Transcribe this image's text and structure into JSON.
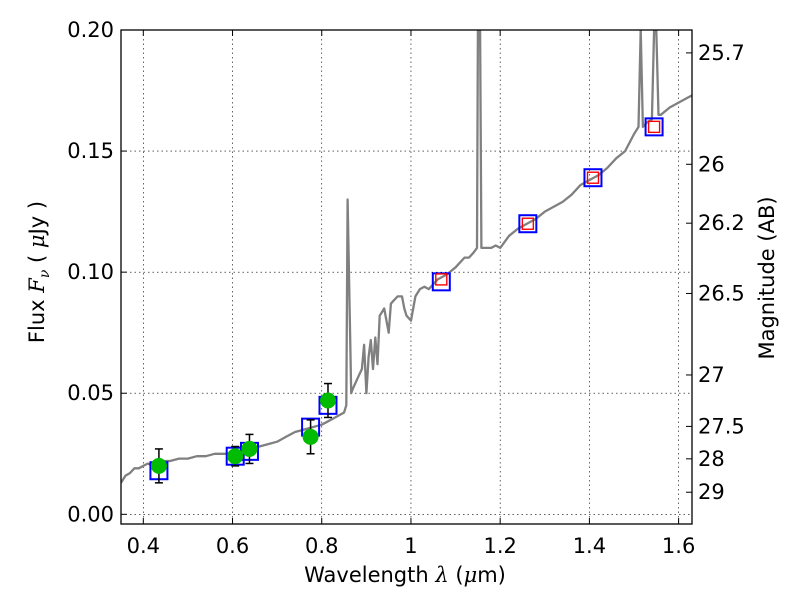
{
  "chart_data": {
    "type": "scatter",
    "xlabel": "Wavelength",
    "xlabel_symbol": "λ",
    "xlabel_unit_open": " (",
    "xlabel_unit_mu": "μ",
    "xlabel_unit_close": "m)",
    "ylabel": "Flux",
    "ylabel_symbol": "F",
    "ylabel_symbol_sub": "ν",
    "ylabel_unit_open": "( ",
    "ylabel_unit_mu": "μ",
    "ylabel_unit_close": "Jy )",
    "y2label": "Magnitude (AB)",
    "xlim": [
      0.35,
      1.63
    ],
    "ylim": [
      -0.004,
      0.2
    ],
    "grid": true,
    "x_ticks": [
      {
        "value": 0.4,
        "label": "0.4"
      },
      {
        "value": 0.6,
        "label": "0.6"
      },
      {
        "value": 0.8,
        "label": "0.8"
      },
      {
        "value": 1.0,
        "label": "1"
      },
      {
        "value": 1.2,
        "label": "1.2"
      },
      {
        "value": 1.4,
        "label": "1.4"
      },
      {
        "value": 1.6,
        "label": "1.6"
      }
    ],
    "y_ticks": [
      {
        "value": 0.0,
        "label": "0.00"
      },
      {
        "value": 0.05,
        "label": "0.05"
      },
      {
        "value": 0.1,
        "label": "0.10"
      },
      {
        "value": 0.15,
        "label": "0.15"
      },
      {
        "value": 0.2,
        "label": "0.20"
      }
    ],
    "mag_ticks": [
      {
        "value": 25.7,
        "label": "25.7"
      },
      {
        "value": 26.0,
        "label": "26"
      },
      {
        "value": 26.2,
        "label": "26.2"
      },
      {
        "value": 26.5,
        "label": "26.5"
      },
      {
        "value": 27.0,
        "label": "27"
      },
      {
        "value": 27.5,
        "label": "27.5"
      },
      {
        "value": 28.0,
        "label": "28"
      },
      {
        "value": 29.0,
        "label": "29"
      }
    ],
    "series": [
      {
        "name": "model spectrum",
        "kind": "line",
        "color": "#808080",
        "points": [
          [
            0.35,
            0.013
          ],
          [
            0.36,
            0.016
          ],
          [
            0.37,
            0.017
          ],
          [
            0.38,
            0.019
          ],
          [
            0.39,
            0.019
          ],
          [
            0.4,
            0.02
          ],
          [
            0.41,
            0.021
          ],
          [
            0.42,
            0.02
          ],
          [
            0.43,
            0.021
          ],
          [
            0.44,
            0.022
          ],
          [
            0.45,
            0.022
          ],
          [
            0.46,
            0.022
          ],
          [
            0.48,
            0.023
          ],
          [
            0.5,
            0.023
          ],
          [
            0.52,
            0.024
          ],
          [
            0.54,
            0.024
          ],
          [
            0.56,
            0.025
          ],
          [
            0.58,
            0.025
          ],
          [
            0.6,
            0.025
          ],
          [
            0.62,
            0.026
          ],
          [
            0.64,
            0.027
          ],
          [
            0.66,
            0.028
          ],
          [
            0.68,
            0.029
          ],
          [
            0.7,
            0.03
          ],
          [
            0.72,
            0.032
          ],
          [
            0.74,
            0.034
          ],
          [
            0.76,
            0.035
          ],
          [
            0.78,
            0.036
          ],
          [
            0.8,
            0.037
          ],
          [
            0.81,
            0.038
          ],
          [
            0.82,
            0.039
          ],
          [
            0.83,
            0.04
          ],
          [
            0.84,
            0.041
          ],
          [
            0.85,
            0.042
          ],
          [
            0.855,
            0.045
          ],
          [
            0.858,
            0.13
          ],
          [
            0.862,
            0.09
          ],
          [
            0.866,
            0.05
          ],
          [
            0.87,
            0.052
          ],
          [
            0.88,
            0.056
          ],
          [
            0.89,
            0.06
          ],
          [
            0.895,
            0.07
          ],
          [
            0.9,
            0.05
          ],
          [
            0.905,
            0.065
          ],
          [
            0.91,
            0.072
          ],
          [
            0.915,
            0.06
          ],
          [
            0.92,
            0.073
          ],
          [
            0.925,
            0.062
          ],
          [
            0.93,
            0.082
          ],
          [
            0.94,
            0.085
          ],
          [
            0.95,
            0.075
          ],
          [
            0.955,
            0.087
          ],
          [
            0.96,
            0.088
          ],
          [
            0.97,
            0.09
          ],
          [
            0.98,
            0.09
          ],
          [
            0.985,
            0.085
          ],
          [
            0.99,
            0.082
          ],
          [
            1.0,
            0.08
          ],
          [
            1.01,
            0.09
          ],
          [
            1.02,
            0.093
          ],
          [
            1.03,
            0.094
          ],
          [
            1.04,
            0.093
          ],
          [
            1.06,
            0.097
          ],
          [
            1.08,
            0.099
          ],
          [
            1.1,
            0.102
          ],
          [
            1.12,
            0.106
          ],
          [
            1.13,
            0.106
          ],
          [
            1.14,
            0.108
          ],
          [
            1.148,
            0.11
          ],
          [
            1.15,
            0.2
          ],
          [
            1.155,
            0.2
          ],
          [
            1.158,
            0.11
          ],
          [
            1.17,
            0.11
          ],
          [
            1.18,
            0.11
          ],
          [
            1.19,
            0.111
          ],
          [
            1.2,
            0.11
          ],
          [
            1.22,
            0.115
          ],
          [
            1.24,
            0.118
          ],
          [
            1.26,
            0.12
          ],
          [
            1.28,
            0.122
          ],
          [
            1.3,
            0.125
          ],
          [
            1.32,
            0.127
          ],
          [
            1.34,
            0.129
          ],
          [
            1.36,
            0.132
          ],
          [
            1.38,
            0.136
          ],
          [
            1.4,
            0.138
          ],
          [
            1.42,
            0.14
          ],
          [
            1.44,
            0.143
          ],
          [
            1.46,
            0.147
          ],
          [
            1.48,
            0.15
          ],
          [
            1.5,
            0.157
          ],
          [
            1.51,
            0.16
          ],
          [
            1.515,
            0.2
          ],
          [
            1.52,
            0.16
          ],
          [
            1.53,
            0.162
          ],
          [
            1.54,
            0.163
          ],
          [
            1.545,
            0.2
          ],
          [
            1.55,
            0.2
          ],
          [
            1.555,
            0.165
          ],
          [
            1.56,
            0.165
          ],
          [
            1.58,
            0.168
          ],
          [
            1.6,
            0.17
          ],
          [
            1.62,
            0.172
          ],
          [
            1.63,
            0.173
          ]
        ]
      },
      {
        "name": "model photometry (blue squares)",
        "kind": "square",
        "color": "#0000ff",
        "points": [
          [
            0.435,
            0.018
          ],
          [
            0.606,
            0.024
          ],
          [
            0.638,
            0.026
          ],
          [
            0.775,
            0.036
          ],
          [
            0.814,
            0.045
          ],
          [
            1.068,
            0.096
          ],
          [
            1.262,
            0.12
          ],
          [
            1.408,
            0.139
          ],
          [
            1.545,
            0.16
          ]
        ]
      },
      {
        "name": "observed upper limits (red squares)",
        "kind": "square-small",
        "color": "#ff0000",
        "points": [
          [
            1.068,
            0.097
          ],
          [
            1.262,
            0.12
          ],
          [
            1.408,
            0.139
          ],
          [
            1.545,
            0.16
          ]
        ]
      },
      {
        "name": "observed photometry (green points)",
        "kind": "errorbar",
        "color": "#00bb00",
        "points": [
          {
            "x": 0.435,
            "y": 0.02,
            "yerr": 0.007
          },
          {
            "x": 0.606,
            "y": 0.024,
            "yerr": 0.004
          },
          {
            "x": 0.638,
            "y": 0.027,
            "yerr": 0.006
          },
          {
            "x": 0.775,
            "y": 0.032,
            "yerr": 0.007
          },
          {
            "x": 0.814,
            "y": 0.047,
            "yerr": 0.007
          }
        ]
      }
    ]
  }
}
